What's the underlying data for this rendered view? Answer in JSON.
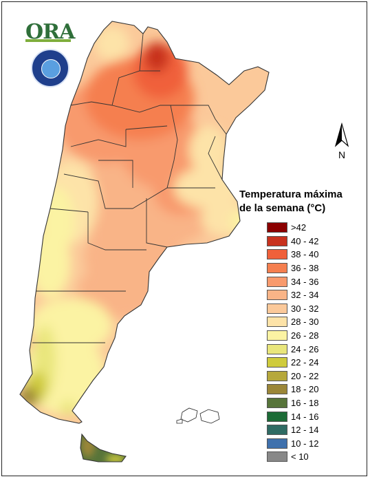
{
  "header": {
    "logo_text": "ORA",
    "seal_icon": "smn-argentina-seal-icon"
  },
  "north_arrow": {
    "label": "N",
    "icon": "north-arrow-icon"
  },
  "legend": {
    "title_line1": "Temperatura máxima",
    "title_line2": "de la semana (°C)",
    "items": [
      {
        "label": ">42",
        "color": "#8b0000"
      },
      {
        "label": "40 - 42",
        "color": "#c8321e"
      },
      {
        "label": "38 - 40",
        "color": "#f0603a"
      },
      {
        "label": "36 - 38",
        "color": "#f57f4f"
      },
      {
        "label": "34 - 36",
        "color": "#f89a6d"
      },
      {
        "label": "32 - 34",
        "color": "#f9b487"
      },
      {
        "label": "30 - 32",
        "color": "#fbc99a"
      },
      {
        "label": "28 - 30",
        "color": "#fde3a8"
      },
      {
        "label": "26 - 28",
        "color": "#fbf3a3"
      },
      {
        "label": "24 - 26",
        "color": "#e9e67c"
      },
      {
        "label": "22 - 24",
        "color": "#cfcb3c"
      },
      {
        "label": "20 - 22",
        "color": "#b6a83c"
      },
      {
        "label": "18 - 20",
        "color": "#9b8638"
      },
      {
        "label": "16 - 18",
        "color": "#57743a"
      },
      {
        "label": "14 - 16",
        "color": "#1c6b36"
      },
      {
        "label": "12 - 14",
        "color": "#2f6b63"
      },
      {
        "label": "10 - 12",
        "color": "#3f71ad"
      },
      {
        "label": "< 10",
        "color": "#888888"
      }
    ]
  }
}
